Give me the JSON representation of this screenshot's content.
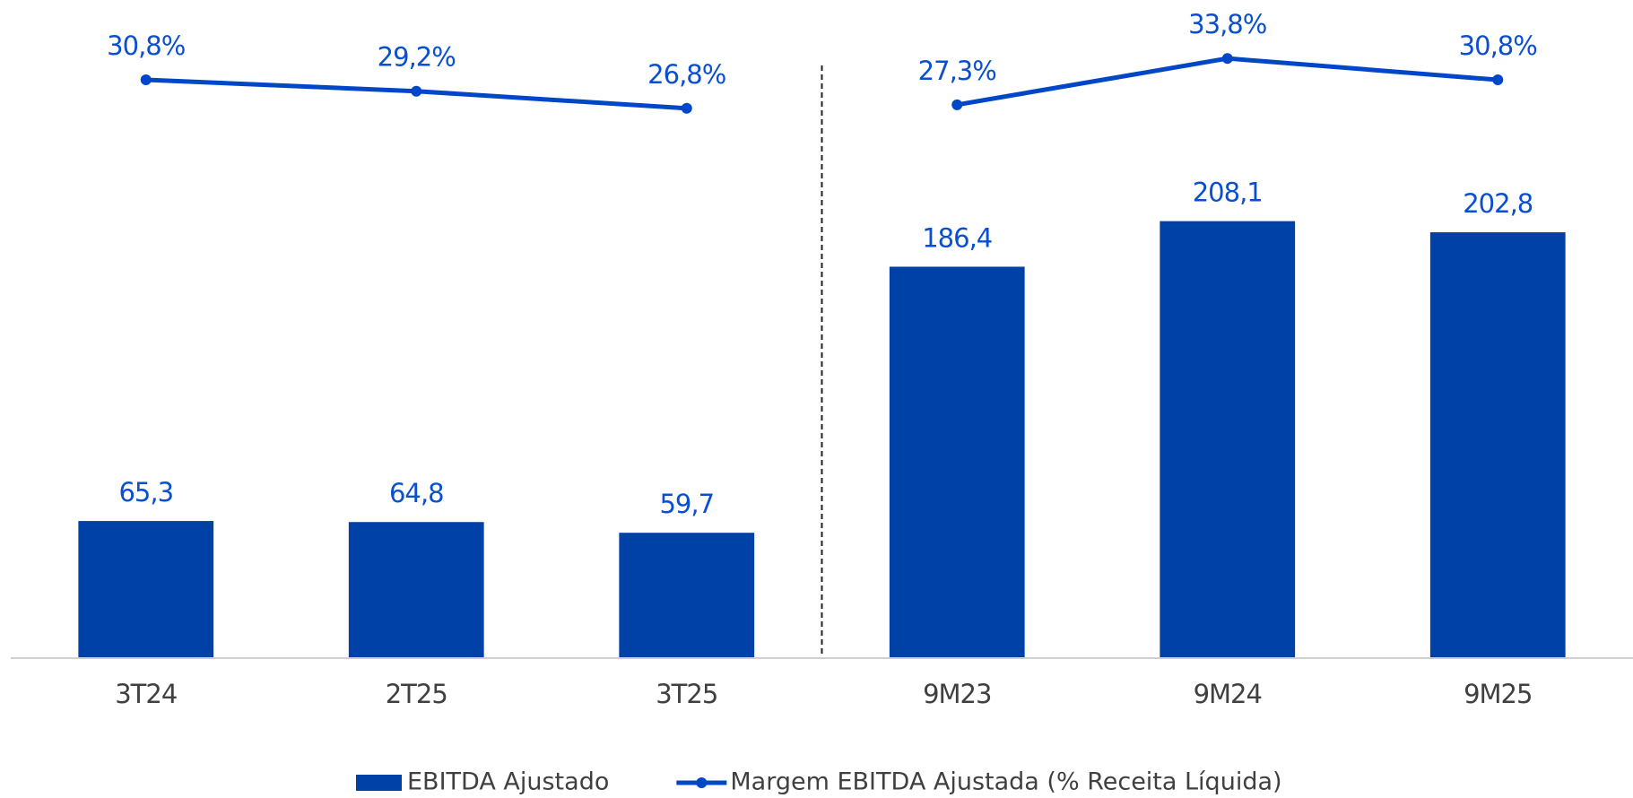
{
  "chart_data": {
    "type": "bar_line",
    "categories": [
      "3T24",
      "2T25",
      "3T25",
      "9M23",
      "9M24",
      "9M25"
    ],
    "series": [
      {
        "name": "EBITDA Ajustado",
        "type": "bar",
        "color": "#0041a8",
        "values": [
          65.3,
          64.8,
          59.7,
          186.4,
          208.1,
          202.8
        ],
        "value_labels": [
          "65,3",
          "64,8",
          "59,7",
          "186,4",
          "208,1",
          "202,8"
        ]
      },
      {
        "name": "Margem EBITDA Ajustada (% Receita Líquida)",
        "type": "line",
        "axis": "y2",
        "color": "#0047c8",
        "values": [
          30.8,
          29.2,
          26.8,
          27.3,
          33.8,
          30.8
        ],
        "value_labels": [
          "30,8%",
          "29,2%",
          "26,8%",
          "27,3%",
          "33,8%",
          "30,8%"
        ],
        "segments": [
          [
            0,
            3
          ],
          [
            3,
            6
          ]
        ]
      }
    ],
    "ylim": [
      0,
      310
    ],
    "y2lim": [
      -50.4,
      41
    ],
    "legend": "bottom"
  }
}
